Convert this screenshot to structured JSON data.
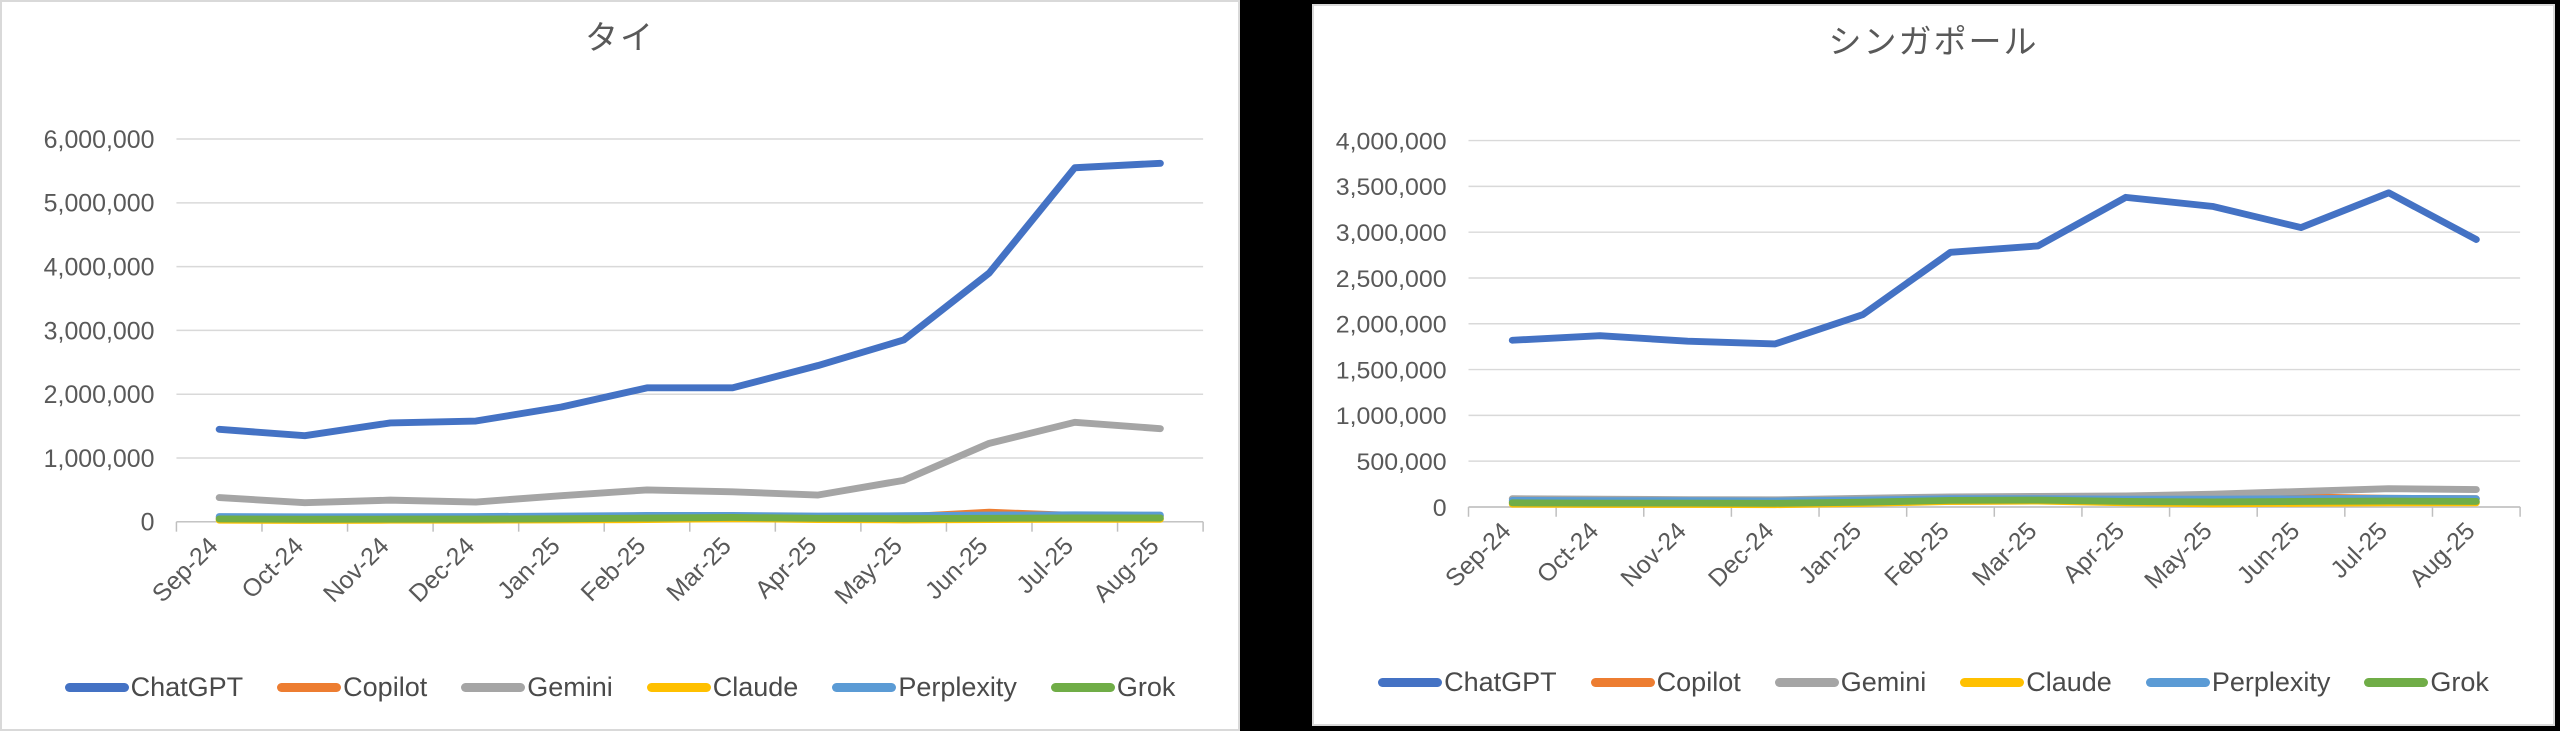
{
  "chart_data": [
    {
      "type": "line",
      "title": "タイ",
      "xlabel": "",
      "ylabel": "",
      "ylim": [
        0,
        6000000
      ],
      "grid": true,
      "legend_position": "bottom",
      "yticks": [
        0,
        1000000,
        2000000,
        3000000,
        4000000,
        5000000,
        6000000
      ],
      "ytick_labels": [
        "0",
        "1,000,000",
        "2,000,000",
        "3,000,000",
        "4,000,000",
        "5,000,000",
        "6,000,000"
      ],
      "categories": [
        "Sep-24",
        "Oct-24",
        "Nov-24",
        "Dec-24",
        "Jan-25",
        "Feb-25",
        "Mar-25",
        "Apr-25",
        "May-25",
        "Jun-25",
        "Jul-25",
        "Aug-25"
      ],
      "series": [
        {
          "name": "ChatGPT",
          "color": "#4472C4",
          "values": [
            1450000,
            1350000,
            1550000,
            1580000,
            1800000,
            2100000,
            2100000,
            2450000,
            2850000,
            3900000,
            5550000,
            5620000
          ]
        },
        {
          "name": "Copilot",
          "color": "#ED7D31",
          "values": [
            60000,
            55000,
            60000,
            58000,
            65000,
            75000,
            80000,
            70000,
            78000,
            150000,
            100000,
            92000
          ]
        },
        {
          "name": "Gemini",
          "color": "#A5A5A5",
          "values": [
            380000,
            300000,
            340000,
            310000,
            410000,
            500000,
            470000,
            420000,
            650000,
            1230000,
            1560000,
            1460000
          ]
        },
        {
          "name": "Claude",
          "color": "#FFC000",
          "values": [
            25000,
            22000,
            25000,
            25000,
            30000,
            35000,
            50000,
            35000,
            30000,
            35000,
            40000,
            40000
          ]
        },
        {
          "name": "Perplexity",
          "color": "#5B9BD5",
          "values": [
            82000,
            78000,
            80000,
            82000,
            90000,
            100000,
            100000,
            90000,
            95000,
            105000,
            110000,
            105000
          ]
        },
        {
          "name": "Grok",
          "color": "#70AD47",
          "values": [
            45000,
            40000,
            42000,
            42000,
            48000,
            58000,
            68000,
            55000,
            50000,
            55000,
            60000,
            60000
          ]
        }
      ]
    },
    {
      "type": "line",
      "title": "シンガポール",
      "xlabel": "",
      "ylabel": "",
      "ylim": [
        0,
        4000000
      ],
      "grid": true,
      "legend_position": "bottom",
      "yticks": [
        0,
        500000,
        1000000,
        1500000,
        2000000,
        2500000,
        3000000,
        3500000,
        4000000
      ],
      "ytick_labels": [
        "0",
        "500,000",
        "1,000,000",
        "1,500,000",
        "2,000,000",
        "2,500,000",
        "3,000,000",
        "3,500,000",
        "4,000,000"
      ],
      "categories": [
        "Sep-24",
        "Oct-24",
        "Nov-24",
        "Dec-24",
        "Jan-25",
        "Feb-25",
        "Mar-25",
        "Apr-25",
        "May-25",
        "Jun-25",
        "Jul-25",
        "Aug-25"
      ],
      "series": [
        {
          "name": "ChatGPT",
          "color": "#4472C4",
          "values": [
            1820000,
            1870000,
            1810000,
            1780000,
            2100000,
            2780000,
            2850000,
            3380000,
            3280000,
            3050000,
            3430000,
            2920000
          ]
        },
        {
          "name": "Copilot",
          "color": "#ED7D31",
          "values": [
            55000,
            50000,
            50000,
            50000,
            55000,
            62000,
            65000,
            70000,
            78000,
            110000,
            95000,
            90000
          ]
        },
        {
          "name": "Gemini",
          "color": "#A5A5A5",
          "values": [
            90000,
            85000,
            80000,
            78000,
            95000,
            110000,
            115000,
            120000,
            140000,
            170000,
            200000,
            190000
          ]
        },
        {
          "name": "Claude",
          "color": "#FFC000",
          "values": [
            30000,
            28000,
            28000,
            25000,
            38000,
            60000,
            65000,
            45000,
            35000,
            40000,
            45000,
            45000
          ]
        },
        {
          "name": "Perplexity",
          "color": "#5B9BD5",
          "values": [
            72000,
            68000,
            68000,
            65000,
            75000,
            90000,
            90000,
            85000,
            85000,
            90000,
            95000,
            90000
          ]
        },
        {
          "name": "Grok",
          "color": "#70AD47",
          "values": [
            45000,
            42000,
            42000,
            40000,
            52000,
            72000,
            75000,
            60000,
            55000,
            60000,
            65000,
            60000
          ]
        }
      ]
    }
  ]
}
